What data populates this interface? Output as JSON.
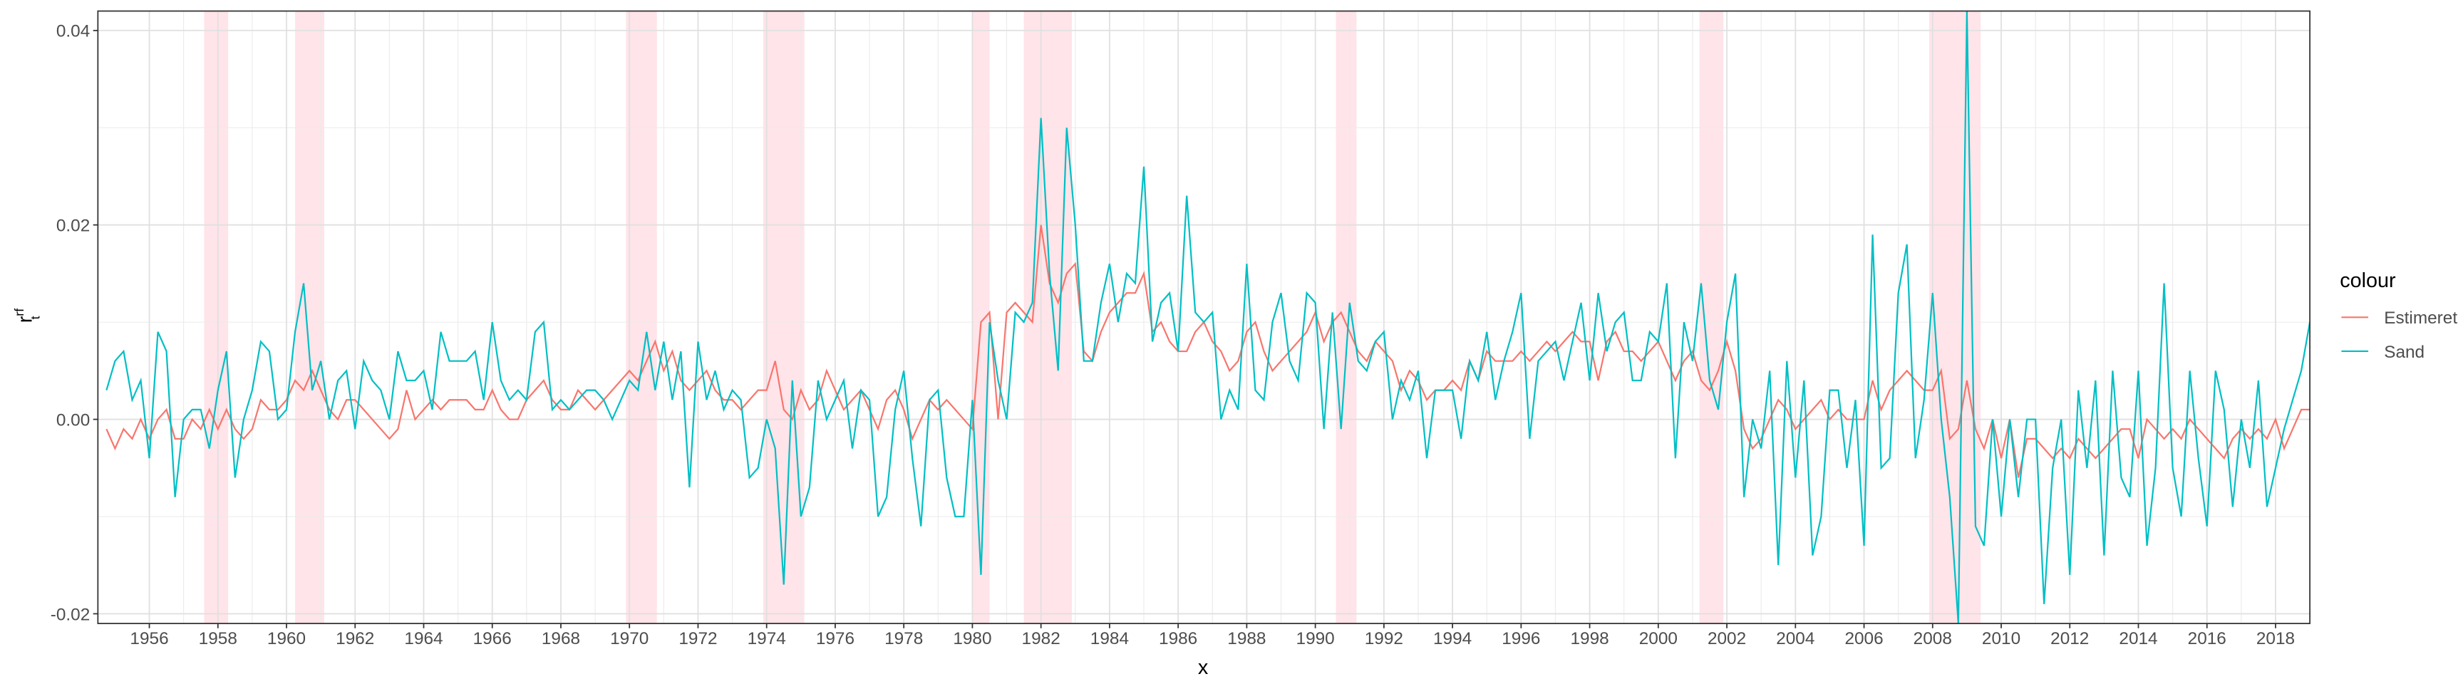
{
  "chart_data": {
    "type": "line",
    "x_label": "x",
    "y_label": {
      "base": "r",
      "sub": "t",
      "sup": "rf"
    },
    "legend_title": "colour",
    "legend": "right",
    "grid": true,
    "xlim": [
      1954.5,
      2019
    ],
    "ylim": [
      -0.021,
      0.042
    ],
    "xticks": [
      1956,
      1958,
      1960,
      1962,
      1964,
      1966,
      1968,
      1970,
      1972,
      1974,
      1976,
      1978,
      1980,
      1982,
      1984,
      1986,
      1988,
      1990,
      1992,
      1994,
      1996,
      1998,
      2000,
      2002,
      2004,
      2006,
      2008,
      2010,
      2012,
      2014,
      2016,
      2018
    ],
    "yticks": [
      -0.02,
      {
        "value": 0,
        "label": "0.00"
      },
      0.02,
      0.04
    ],
    "recessions": [
      [
        1957.6,
        1958.3
      ],
      [
        1960.25,
        1961.1
      ],
      [
        1969.9,
        1970.8
      ],
      [
        1973.9,
        1975.1
      ],
      [
        1980.0,
        1980.5
      ],
      [
        1981.5,
        1982.9
      ],
      [
        1990.6,
        1991.2
      ],
      [
        2001.2,
        2001.9
      ],
      [
        2007.9,
        2009.4
      ]
    ],
    "recession_color": "#ffe4e9",
    "x": [
      1954.75,
      1955,
      1955.25,
      1955.5,
      1955.75,
      1956,
      1956.25,
      1956.5,
      1956.75,
      1957,
      1957.25,
      1957.5,
      1957.75,
      1958,
      1958.25,
      1958.5,
      1958.75,
      1959,
      1959.25,
      1959.5,
      1959.75,
      1960,
      1960.25,
      1960.5,
      1960.75,
      1961,
      1961.25,
      1961.5,
      1961.75,
      1962,
      1962.25,
      1962.5,
      1962.75,
      1963,
      1963.25,
      1963.5,
      1963.75,
      1964,
      1964.25,
      1964.5,
      1964.75,
      1965,
      1965.25,
      1965.5,
      1965.75,
      1966,
      1966.25,
      1966.5,
      1966.75,
      1967,
      1967.25,
      1967.5,
      1967.75,
      1968,
      1968.25,
      1968.5,
      1968.75,
      1969,
      1969.25,
      1969.5,
      1969.75,
      1970,
      1970.25,
      1970.5,
      1970.75,
      1971,
      1971.25,
      1971.5,
      1971.75,
      1972,
      1972.25,
      1972.5,
      1972.75,
      1973,
      1973.25,
      1973.5,
      1973.75,
      1974,
      1974.25,
      1974.5,
      1974.75,
      1975,
      1975.25,
      1975.5,
      1975.75,
      1976,
      1976.25,
      1976.5,
      1976.75,
      1977,
      1977.25,
      1977.5,
      1977.75,
      1978,
      1978.25,
      1978.5,
      1978.75,
      1979,
      1979.25,
      1979.5,
      1979.75,
      1980,
      1980.25,
      1980.5,
      1980.75,
      1981,
      1981.25,
      1981.5,
      1981.75,
      1982,
      1982.25,
      1982.5,
      1982.75,
      1983,
      1983.25,
      1983.5,
      1983.75,
      1984,
      1984.25,
      1984.5,
      1984.75,
      1985,
      1985.25,
      1985.5,
      1985.75,
      1986,
      1986.25,
      1986.5,
      1986.75,
      1987,
      1987.25,
      1987.5,
      1987.75,
      1988,
      1988.25,
      1988.5,
      1988.75,
      1989,
      1989.25,
      1989.5,
      1989.75,
      1990,
      1990.25,
      1990.5,
      1990.75,
      1991,
      1991.25,
      1991.5,
      1991.75,
      1992,
      1992.25,
      1992.5,
      1992.75,
      1993,
      1993.25,
      1993.5,
      1993.75,
      1994,
      1994.25,
      1994.5,
      1994.75,
      1995,
      1995.25,
      1995.5,
      1995.75,
      1996,
      1996.25,
      1996.5,
      1996.75,
      1997,
      1997.25,
      1997.5,
      1997.75,
      1998,
      1998.25,
      1998.5,
      1998.75,
      1999,
      1999.25,
      1999.5,
      1999.75,
      2000,
      2000.25,
      2000.5,
      2000.75,
      2001,
      2001.25,
      2001.5,
      2001.75,
      2002,
      2002.25,
      2002.5,
      2002.75,
      2003,
      2003.25,
      2003.5,
      2003.75,
      2004,
      2004.25,
      2004.5,
      2004.75,
      2005,
      2005.25,
      2005.5,
      2005.75,
      2006,
      2006.25,
      2006.5,
      2006.75,
      2007,
      2007.25,
      2007.5,
      2007.75,
      2008,
      2008.25,
      2008.5,
      2008.75,
      2009,
      2009.25,
      2009.5,
      2009.75,
      2010,
      2010.25,
      2010.5,
      2010.75,
      2011,
      2011.25,
      2011.5,
      2011.75,
      2012,
      2012.25,
      2012.5,
      2012.75,
      2013,
      2013.25,
      2013.5,
      2013.75,
      2014,
      2014.25,
      2014.5,
      2014.75,
      2015,
      2015.25,
      2015.5,
      2015.75,
      2016,
      2016.25,
      2016.5,
      2016.75,
      2017,
      2017.25,
      2017.5,
      2017.75,
      2018,
      2018.25,
      2018.5,
      2018.75,
      2019
    ],
    "series": [
      {
        "name": "Estimeret",
        "color": "#F8766D",
        "values": [
          -0.001,
          -0.003,
          -0.001,
          -0.002,
          0.0,
          -0.002,
          0.0,
          0.001,
          -0.002,
          -0.002,
          0.0,
          -0.001,
          0.001,
          -0.001,
          0.001,
          -0.001,
          -0.002,
          -0.001,
          0.002,
          0.001,
          0.001,
          0.002,
          0.004,
          0.003,
          0.005,
          0.003,
          0.001,
          0.0,
          0.002,
          0.002,
          0.001,
          0.0,
          -0.001,
          -0.002,
          -0.001,
          0.003,
          0.0,
          0.001,
          0.002,
          0.001,
          0.002,
          0.002,
          0.002,
          0.001,
          0.001,
          0.003,
          0.001,
          0.0,
          0.0,
          0.002,
          0.003,
          0.004,
          0.002,
          0.001,
          0.001,
          0.003,
          0.002,
          0.001,
          0.002,
          0.003,
          0.004,
          0.005,
          0.004,
          0.006,
          0.008,
          0.005,
          0.007,
          0.004,
          0.003,
          0.004,
          0.005,
          0.003,
          0.002,
          0.002,
          0.001,
          0.002,
          0.003,
          0.003,
          0.006,
          0.001,
          0.0,
          0.003,
          0.001,
          0.002,
          0.005,
          0.003,
          0.001,
          0.002,
          0.003,
          0.001,
          -0.001,
          0.002,
          0.003,
          0.001,
          -0.002,
          0.0,
          0.002,
          0.001,
          0.002,
          0.001,
          0.0,
          -0.001,
          0.01,
          0.011,
          0.0,
          0.011,
          0.012,
          0.011,
          0.01,
          0.02,
          0.014,
          0.012,
          0.015,
          0.016,
          0.007,
          0.006,
          0.009,
          0.011,
          0.012,
          0.013,
          0.013,
          0.015,
          0.009,
          0.01,
          0.008,
          0.007,
          0.007,
          0.009,
          0.01,
          0.008,
          0.007,
          0.005,
          0.006,
          0.009,
          0.01,
          0.007,
          0.005,
          0.006,
          0.007,
          0.008,
          0.009,
          0.011,
          0.008,
          0.01,
          0.011,
          0.009,
          0.007,
          0.006,
          0.008,
          0.007,
          0.006,
          0.003,
          0.005,
          0.004,
          0.002,
          0.003,
          0.003,
          0.004,
          0.003,
          0.006,
          0.004,
          0.007,
          0.006,
          0.006,
          0.006,
          0.007,
          0.006,
          0.007,
          0.008,
          0.007,
          0.008,
          0.009,
          0.008,
          0.008,
          0.004,
          0.008,
          0.009,
          0.007,
          0.007,
          0.006,
          0.007,
          0.008,
          0.006,
          0.004,
          0.006,
          0.007,
          0.004,
          0.003,
          0.005,
          0.008,
          0.005,
          -0.001,
          -0.003,
          -0.002,
          0.0,
          0.002,
          0.001,
          -0.001,
          0.0,
          0.001,
          0.002,
          0.0,
          0.001,
          0.0,
          0.0,
          0.0,
          0.004,
          0.001,
          0.003,
          0.004,
          0.005,
          0.004,
          0.003,
          0.003,
          0.005,
          -0.002,
          -0.001,
          0.004,
          -0.001,
          -0.003,
          0.0,
          -0.004,
          0.0,
          -0.006,
          -0.002,
          -0.002,
          -0.003,
          -0.004,
          -0.003,
          -0.004,
          -0.002,
          -0.003,
          -0.004,
          -0.003,
          -0.002,
          -0.001,
          -0.001,
          -0.004,
          0.0,
          -0.001,
          -0.002,
          -0.001,
          -0.002,
          0.0,
          -0.001,
          -0.002,
          -0.003,
          -0.004,
          -0.002,
          -0.001,
          -0.002,
          -0.001,
          -0.002,
          0.0,
          -0.003,
          -0.001,
          0.001,
          0.001
        ]
      },
      {
        "name": "Sand",
        "color": "#00BFC4",
        "values": [
          0.003,
          0.006,
          0.007,
          0.002,
          0.004,
          -0.004,
          0.009,
          0.007,
          -0.008,
          0.0,
          0.001,
          0.001,
          -0.003,
          0.003,
          0.007,
          -0.006,
          0.0,
          0.003,
          0.008,
          0.007,
          0.0,
          0.001,
          0.009,
          0.014,
          0.003,
          0.006,
          0.0,
          0.004,
          0.005,
          -0.001,
          0.006,
          0.004,
          0.003,
          0.0,
          0.007,
          0.004,
          0.004,
          0.005,
          0.001,
          0.009,
          0.006,
          0.006,
          0.006,
          0.007,
          0.002,
          0.01,
          0.004,
          0.002,
          0.003,
          0.002,
          0.009,
          0.01,
          0.001,
          0.002,
          0.001,
          0.002,
          0.003,
          0.003,
          0.002,
          0.0,
          0.002,
          0.004,
          0.003,
          0.009,
          0.003,
          0.008,
          0.002,
          0.007,
          -0.007,
          0.008,
          0.002,
          0.005,
          0.001,
          0.003,
          0.002,
          -0.006,
          -0.005,
          0.0,
          -0.003,
          -0.017,
          0.004,
          -0.01,
          -0.007,
          0.004,
          0.0,
          0.002,
          0.004,
          -0.003,
          0.003,
          0.002,
          -0.01,
          -0.008,
          0.001,
          0.005,
          -0.004,
          -0.011,
          0.002,
          0.003,
          -0.006,
          -0.01,
          -0.01,
          0.002,
          -0.016,
          0.01,
          0.004,
          0.0,
          0.011,
          0.01,
          0.012,
          0.031,
          0.015,
          0.005,
          0.03,
          0.02,
          0.006,
          0.006,
          0.012,
          0.016,
          0.01,
          0.015,
          0.014,
          0.026,
          0.008,
          0.012,
          0.013,
          0.007,
          0.023,
          0.011,
          0.01,
          0.011,
          0.0,
          0.003,
          0.001,
          0.016,
          0.003,
          0.002,
          0.01,
          0.013,
          0.006,
          0.004,
          0.013,
          0.012,
          -0.001,
          0.011,
          -0.001,
          0.012,
          0.006,
          0.005,
          0.008,
          0.009,
          0.0,
          0.004,
          0.002,
          0.005,
          -0.004,
          0.003,
          0.003,
          0.003,
          -0.002,
          0.006,
          0.004,
          0.009,
          0.002,
          0.006,
          0.009,
          0.013,
          -0.002,
          0.006,
          0.007,
          0.008,
          0.004,
          0.008,
          0.012,
          0.004,
          0.013,
          0.007,
          0.01,
          0.011,
          0.004,
          0.004,
          0.009,
          0.008,
          0.014,
          -0.004,
          0.01,
          0.006,
          0.014,
          0.004,
          0.001,
          0.01,
          0.015,
          -0.008,
          0.0,
          -0.003,
          0.005,
          -0.015,
          0.006,
          -0.006,
          0.004,
          -0.014,
          -0.01,
          0.003,
          0.003,
          -0.005,
          0.002,
          -0.013,
          0.019,
          -0.005,
          -0.004,
          0.013,
          0.018,
          -0.004,
          0.002,
          0.013,
          0.0,
          -0.008,
          -0.021,
          0.042,
          -0.011,
          -0.013,
          0.0,
          -0.01,
          0.0,
          -0.008,
          0.0,
          0.0,
          -0.019,
          -0.005,
          0.0,
          -0.016,
          0.003,
          -0.005,
          0.004,
          -0.014,
          0.005,
          -0.006,
          -0.008,
          0.005,
          -0.013,
          -0.005,
          0.014,
          -0.005,
          -0.01,
          0.005,
          -0.004,
          -0.011,
          0.005,
          0.001,
          -0.009,
          0.0,
          -0.005,
          0.004,
          -0.009,
          -0.005,
          -0.001,
          0.002,
          0.005,
          0.01
        ]
      }
    ]
  }
}
